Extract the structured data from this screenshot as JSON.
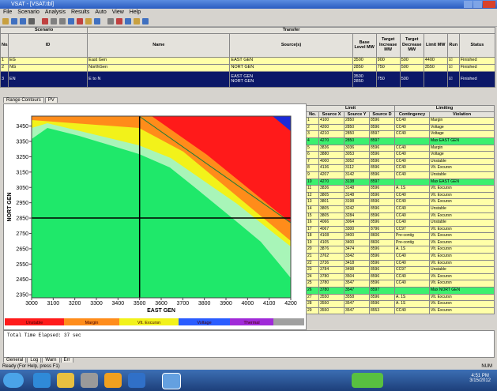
{
  "window": {
    "title": "VSAT - [VSAT.tbl]"
  },
  "menu": [
    "File",
    "Scenario",
    "Analysis",
    "Results",
    "Auto",
    "View",
    "Help"
  ],
  "scenarios": {
    "group_headers": [
      "Scenario",
      "Transfer"
    ],
    "columns": [
      "No.",
      "ID",
      "Name",
      "Source(s)",
      "Base Level MW",
      "Target Increase MW",
      "Target Decrease MW",
      "Limit MW",
      "Run",
      "Status"
    ],
    "rows": [
      [
        1,
        "EG",
        "East Gen",
        "EAST GEN",
        3500,
        900,
        500,
        4400,
        "☑",
        "Finished"
      ],
      [
        2,
        "NG",
        "NorthGen",
        "NORT GEN",
        2850,
        750,
        500,
        3550,
        "☑",
        "Finished"
      ],
      [
        3,
        "EN",
        "E to N",
        [
          "EAST GEN",
          "NORT GEN"
        ],
        [
          3500,
          2850
        ],
        750,
        500,
        null,
        "☑",
        "Finished"
      ]
    ],
    "row_colors": [
      "#ffffa8",
      "#ffffa8",
      "#0c1868"
    ]
  },
  "view_tabs": [
    "Range Contours",
    "PV"
  ],
  "chart": {
    "x_label": "EAST GEN",
    "y_label": "NORT GEN",
    "xlim": [
      3000,
      4200
    ],
    "ylim": [
      2330,
      3515
    ],
    "xticks": [
      3000,
      3100,
      3200,
      3300,
      3400,
      3500,
      3600,
      3700,
      3800,
      3900,
      4000,
      4100,
      4200
    ],
    "yticks": [
      3450,
      3350,
      3250,
      3150,
      3050,
      2950,
      2850,
      2750,
      2650,
      2550,
      2450,
      2350
    ],
    "legend": [
      {
        "name": "Unstable",
        "color": "#ff1a1a"
      },
      {
        "name": "Margin",
        "color": "#ff8c1a"
      },
      {
        "name": "Vlt. Excursn",
        "color": "#f2f21a"
      },
      {
        "name": "Voltage",
        "color": "#2a5cff"
      },
      {
        "name": "Thermal",
        "color": "#a02ad8"
      }
    ]
  },
  "limits": {
    "group_headers": [
      "Limit",
      "Limiting"
    ],
    "columns": [
      "No.",
      "Source X",
      "Source Y",
      "Source D",
      "Contingency",
      "Violation"
    ],
    "rows": [
      [
        1,
        4100,
        2850,
        8596,
        "CC40",
        "Margin"
      ],
      [
        2,
        4200,
        2850,
        8596,
        "CC40",
        "Voltage"
      ],
      [
        3,
        4210,
        2850,
        8597,
        "CC40",
        "Voltage"
      ],
      [
        4,
        4270,
        2850,
        8597,
        null,
        "Max EAST GEN"
      ],
      [
        5,
        3836,
        3036,
        8596,
        "CC40",
        "Margin"
      ],
      [
        6,
        3880,
        3053,
        8596,
        "CC40",
        "Voltage"
      ],
      [
        7,
        4000,
        3052,
        8596,
        "CC40",
        "Unstable"
      ],
      [
        8,
        4136,
        3112,
        8596,
        "CC40",
        "Vlt. Excursn"
      ],
      [
        9,
        4207,
        3142,
        8596,
        "CC40",
        "Unstable"
      ],
      [
        10,
        4270,
        3138,
        8597,
        null,
        "Max EAST GEN"
      ],
      [
        11,
        3836,
        3148,
        8596,
        "A. 1S",
        "Vlt. Excursn"
      ],
      [
        12,
        3805,
        3148,
        8596,
        "CC40",
        "Vlt. Excursn"
      ],
      [
        13,
        3801,
        3198,
        8596,
        "CC40",
        "Vlt. Excursn"
      ],
      [
        14,
        3805,
        3242,
        8596,
        "CC40",
        "Unstable"
      ],
      [
        15,
        3805,
        3284,
        8596,
        "CC40",
        "Vlt. Excursn"
      ],
      [
        16,
        4066,
        3064,
        8596,
        "CC40",
        "Unstable"
      ],
      [
        17,
        4067,
        3300,
        8796,
        "CC97",
        "Vlt. Excursn"
      ],
      [
        18,
        4108,
        3400,
        8606,
        "Pre-contig",
        "Vlt. Excursn"
      ],
      [
        19,
        4105,
        3400,
        8606,
        "Pre-contig",
        "Vlt. Excursn"
      ],
      [
        20,
        3876,
        3474,
        8596,
        "A. 1S",
        "Vlt. Excursn"
      ],
      [
        21,
        3762,
        3342,
        8596,
        "CC40",
        "Vlt. Excursn"
      ],
      [
        22,
        3736,
        3418,
        8596,
        "CC40",
        "Vlt. Excursn"
      ],
      [
        23,
        3784,
        3498,
        8596,
        "CC97",
        "Unstable"
      ],
      [
        24,
        3780,
        3504,
        8596,
        "CC40",
        "Vlt. Excursn"
      ],
      [
        25,
        3780,
        3547,
        8596,
        "CC40",
        "Vlt. Excursn"
      ],
      [
        26,
        3780,
        3547,
        8597,
        null,
        "Max NORT GEN"
      ],
      [
        27,
        3550,
        3558,
        8596,
        "A. 1S",
        "Vlt. Excursn"
      ],
      [
        28,
        3550,
        3547,
        8596,
        "A. 1S",
        "Vlt. Excursn"
      ],
      [
        29,
        3550,
        3547,
        8553,
        "CC40",
        "Vlt. Excursn"
      ]
    ],
    "highlighted_rows": [
      3,
      9,
      25
    ],
    "highlight_color": "#3cf06e",
    "row_color": "#ffffa8"
  },
  "output": {
    "text": "Total Time Elapsed:     37 sec",
    "tabs": [
      "General",
      "Log",
      "Warn",
      "Err"
    ]
  },
  "status": {
    "left": "Ready  (For Help, press F1)",
    "right": "NUM"
  },
  "taskbar": {
    "time": "4:51 PM",
    "date": "3/15/2012"
  }
}
